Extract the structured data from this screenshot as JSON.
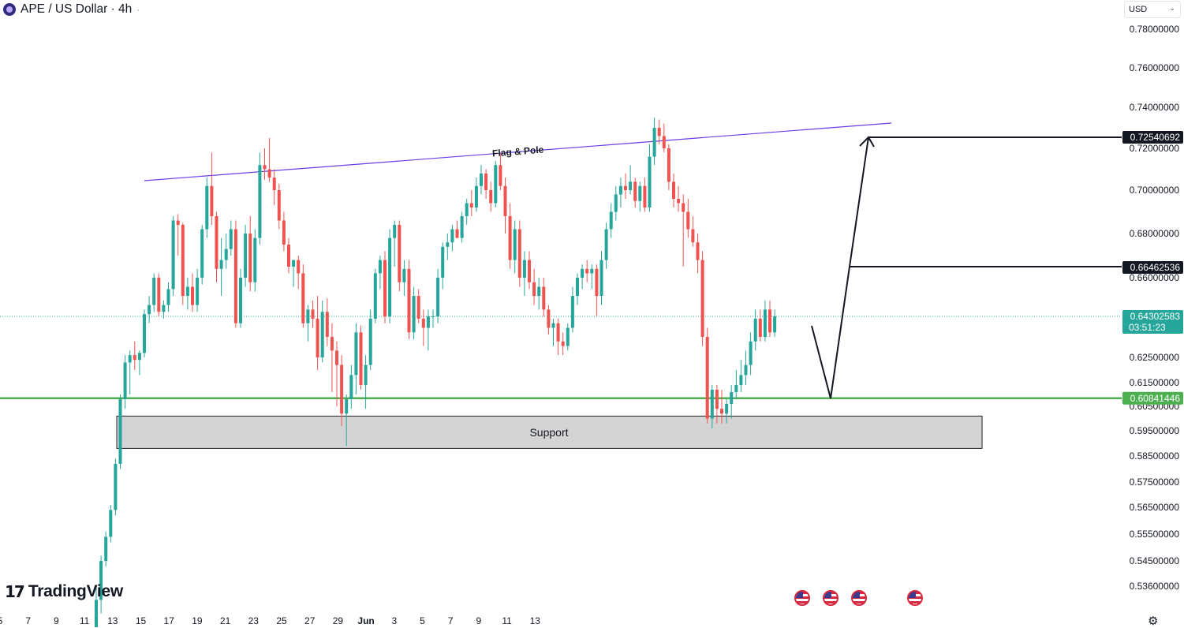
{
  "header": {
    "symbol_title": "APE / US Dollar · 4h",
    "dot": "·"
  },
  "currency": {
    "label": "USD"
  },
  "branding": {
    "logo_mark": "17",
    "logo_text": "TradingView"
  },
  "icons": [
    "symbol-icon",
    "us-flag-icon",
    "settings-gear-icon",
    "chevron-down-icon"
  ],
  "chart_data": {
    "type": "candlestick",
    "symbol": "APE / US Dollar",
    "interval": "4h",
    "y_axis": {
      "ticks": [
        "0.78000000",
        "0.76000000",
        "0.74000000",
        "0.72000000",
        "0.70000000",
        "0.68000000",
        "0.66000000",
        "0.62500000",
        "0.61500000",
        "0.60500000",
        "0.59500000",
        "0.58500000",
        "0.57500000",
        "0.56500000",
        "0.55500000",
        "0.54500000",
        "0.53600000"
      ]
    },
    "x_axis": {
      "ticks": [
        "5",
        "7",
        "9",
        "11",
        "13",
        "15",
        "17",
        "19",
        "21",
        "23",
        "25",
        "27",
        "29",
        "Jun",
        "3",
        "5",
        "7",
        "9",
        "11",
        "13"
      ]
    },
    "price_labels": [
      {
        "value": "0.72540692",
        "style": "black"
      },
      {
        "value": "0.66462536",
        "style": "black"
      },
      {
        "value": "0.64302583",
        "sub": "03:51:23",
        "style": "current"
      },
      {
        "value": "0.60841446",
        "style": "green"
      }
    ],
    "current_price": 0.64302583,
    "countdown": "03:51:23",
    "horizontal_lines": [
      {
        "price": 0.60841446,
        "color": "#4caf50"
      },
      {
        "price": 0.64302583,
        "color": "#26a69a",
        "style": "dotted"
      }
    ],
    "annotations": {
      "trendline_label": "Flag & Pole",
      "trendline_color": "#6a3de8",
      "support_label": "Support"
    },
    "colors": {
      "up": "#26a69a",
      "down": "#ef5350",
      "support_zone": "#d4d4d4"
    },
    "candles_ohlc": [
      [
        0.53,
        0.536,
        0.527,
        0.534
      ],
      [
        0.534,
        0.547,
        0.532,
        0.545
      ],
      [
        0.545,
        0.556,
        0.543,
        0.554
      ],
      [
        0.554,
        0.566,
        0.552,
        0.564
      ],
      [
        0.564,
        0.584,
        0.562,
        0.582
      ],
      [
        0.582,
        0.61,
        0.58,
        0.608
      ],
      [
        0.608,
        0.626,
        0.604,
        0.623
      ],
      [
        0.623,
        0.628,
        0.61,
        0.626
      ],
      [
        0.626,
        0.632,
        0.62,
        0.624
      ],
      [
        0.624,
        0.628,
        0.618,
        0.627
      ],
      [
        0.627,
        0.646,
        0.625,
        0.644
      ],
      [
        0.644,
        0.652,
        0.64,
        0.648
      ],
      [
        0.648,
        0.662,
        0.645,
        0.66
      ],
      [
        0.66,
        0.662,
        0.643,
        0.645
      ],
      [
        0.645,
        0.65,
        0.642,
        0.648
      ],
      [
        0.648,
        0.658,
        0.645,
        0.655
      ],
      [
        0.655,
        0.688,
        0.652,
        0.686
      ],
      [
        0.686,
        0.689,
        0.67,
        0.684
      ],
      [
        0.684,
        0.685,
        0.648,
        0.652
      ],
      [
        0.652,
        0.66,
        0.646,
        0.656
      ],
      [
        0.656,
        0.662,
        0.645,
        0.648
      ],
      [
        0.648,
        0.664,
        0.645,
        0.66
      ],
      [
        0.66,
        0.684,
        0.657,
        0.682
      ],
      [
        0.682,
        0.706,
        0.678,
        0.702
      ],
      [
        0.702,
        0.718,
        0.684,
        0.688
      ],
      [
        0.688,
        0.69,
        0.658,
        0.664
      ],
      [
        0.664,
        0.678,
        0.652,
        0.668
      ],
      [
        0.668,
        0.68,
        0.664,
        0.673
      ],
      [
        0.673,
        0.686,
        0.67,
        0.682
      ],
      [
        0.682,
        0.686,
        0.638,
        0.64
      ],
      [
        0.64,
        0.664,
        0.638,
        0.66
      ],
      [
        0.66,
        0.684,
        0.656,
        0.68
      ],
      [
        0.68,
        0.688,
        0.654,
        0.658
      ],
      [
        0.658,
        0.682,
        0.654,
        0.678
      ],
      [
        0.678,
        0.718,
        0.675,
        0.712
      ],
      [
        0.712,
        0.72,
        0.705,
        0.71
      ],
      [
        0.71,
        0.725,
        0.704,
        0.706
      ],
      [
        0.706,
        0.71,
        0.693,
        0.7
      ],
      [
        0.7,
        0.703,
        0.682,
        0.686
      ],
      [
        0.686,
        0.69,
        0.672,
        0.675
      ],
      [
        0.675,
        0.678,
        0.662,
        0.665
      ],
      [
        0.665,
        0.668,
        0.656,
        0.668
      ],
      [
        0.668,
        0.67,
        0.655,
        0.662
      ],
      [
        0.662,
        0.666,
        0.638,
        0.64
      ],
      [
        0.64,
        0.648,
        0.632,
        0.646
      ],
      [
        0.646,
        0.65,
        0.638,
        0.642
      ],
      [
        0.642,
        0.652,
        0.62,
        0.625
      ],
      [
        0.625,
        0.65,
        0.623,
        0.645
      ],
      [
        0.645,
        0.651,
        0.63,
        0.634
      ],
      [
        0.634,
        0.64,
        0.611,
        0.628
      ],
      [
        0.628,
        0.632,
        0.605,
        0.622
      ],
      [
        0.622,
        0.626,
        0.597,
        0.602
      ],
      [
        0.602,
        0.61,
        0.589,
        0.608
      ],
      [
        0.608,
        0.622,
        0.604,
        0.618
      ],
      [
        0.618,
        0.64,
        0.61,
        0.636
      ],
      [
        0.636,
        0.639,
        0.612,
        0.614
      ],
      [
        0.614,
        0.626,
        0.604,
        0.622
      ],
      [
        0.622,
        0.646,
        0.62,
        0.642
      ],
      [
        0.642,
        0.664,
        0.64,
        0.662
      ],
      [
        0.662,
        0.67,
        0.655,
        0.668
      ],
      [
        0.668,
        0.672,
        0.64,
        0.643
      ],
      [
        0.643,
        0.682,
        0.64,
        0.678
      ],
      [
        0.678,
        0.686,
        0.665,
        0.684
      ],
      [
        0.684,
        0.686,
        0.654,
        0.658
      ],
      [
        0.658,
        0.668,
        0.652,
        0.664
      ],
      [
        0.664,
        0.668,
        0.633,
        0.636
      ],
      [
        0.636,
        0.656,
        0.633,
        0.652
      ],
      [
        0.652,
        0.655,
        0.64,
        0.642
      ],
      [
        0.642,
        0.646,
        0.63,
        0.638
      ],
      [
        0.638,
        0.646,
        0.628,
        0.643
      ],
      [
        0.643,
        0.646,
        0.638,
        0.643
      ],
      [
        0.643,
        0.664,
        0.64,
        0.66
      ],
      [
        0.66,
        0.676,
        0.655,
        0.674
      ],
      [
        0.674,
        0.68,
        0.668,
        0.676
      ],
      [
        0.676,
        0.684,
        0.672,
        0.682
      ],
      [
        0.682,
        0.686,
        0.678,
        0.678
      ],
      [
        0.678,
        0.69,
        0.676,
        0.688
      ],
      [
        0.688,
        0.696,
        0.684,
        0.694
      ],
      [
        0.694,
        0.7,
        0.688,
        0.692
      ],
      [
        0.692,
        0.706,
        0.69,
        0.702
      ],
      [
        0.702,
        0.712,
        0.698,
        0.708
      ],
      [
        0.708,
        0.71,
        0.696,
        0.7
      ],
      [
        0.7,
        0.704,
        0.69,
        0.694
      ],
      [
        0.694,
        0.714,
        0.692,
        0.712
      ],
      [
        0.712,
        0.718,
        0.7,
        0.702
      ],
      [
        0.702,
        0.706,
        0.68,
        0.688
      ],
      [
        0.688,
        0.694,
        0.664,
        0.668
      ],
      [
        0.668,
        0.686,
        0.662,
        0.682
      ],
      [
        0.682,
        0.686,
        0.656,
        0.66
      ],
      [
        0.66,
        0.672,
        0.652,
        0.668
      ],
      [
        0.668,
        0.672,
        0.655,
        0.658
      ],
      [
        0.658,
        0.664,
        0.648,
        0.652
      ],
      [
        0.652,
        0.66,
        0.646,
        0.656
      ],
      [
        0.656,
        0.66,
        0.643,
        0.646
      ],
      [
        0.646,
        0.648,
        0.635,
        0.638
      ],
      [
        0.638,
        0.642,
        0.63,
        0.64
      ],
      [
        0.64,
        0.642,
        0.626,
        0.632
      ],
      [
        0.632,
        0.636,
        0.626,
        0.63
      ],
      [
        0.63,
        0.64,
        0.628,
        0.638
      ],
      [
        0.638,
        0.656,
        0.636,
        0.652
      ],
      [
        0.652,
        0.662,
        0.648,
        0.66
      ],
      [
        0.66,
        0.666,
        0.655,
        0.664
      ],
      [
        0.664,
        0.668,
        0.658,
        0.662
      ],
      [
        0.662,
        0.666,
        0.655,
        0.664
      ],
      [
        0.664,
        0.666,
        0.643,
        0.652
      ],
      [
        0.652,
        0.672,
        0.648,
        0.668
      ],
      [
        0.668,
        0.685,
        0.664,
        0.682
      ],
      [
        0.682,
        0.694,
        0.678,
        0.69
      ],
      [
        0.69,
        0.702,
        0.686,
        0.698
      ],
      [
        0.698,
        0.706,
        0.692,
        0.702
      ],
      [
        0.702,
        0.708,
        0.696,
        0.7
      ],
      [
        0.7,
        0.712,
        0.698,
        0.704
      ],
      [
        0.704,
        0.706,
        0.692,
        0.695
      ],
      [
        0.695,
        0.704,
        0.69,
        0.702
      ],
      [
        0.702,
        0.706,
        0.69,
        0.692
      ],
      [
        0.692,
        0.722,
        0.69,
        0.716
      ],
      [
        0.716,
        0.735,
        0.712,
        0.73
      ],
      [
        0.73,
        0.734,
        0.722,
        0.726
      ],
      [
        0.726,
        0.732,
        0.718,
        0.72
      ],
      [
        0.72,
        0.722,
        0.7,
        0.704
      ],
      [
        0.704,
        0.708,
        0.692,
        0.696
      ],
      [
        0.696,
        0.702,
        0.69,
        0.694
      ],
      [
        0.694,
        0.698,
        0.665,
        0.69
      ],
      [
        0.69,
        0.696,
        0.678,
        0.682
      ],
      [
        0.682,
        0.688,
        0.674,
        0.676
      ],
      [
        0.676,
        0.68,
        0.662,
        0.668
      ],
      [
        0.668,
        0.672,
        0.63,
        0.634
      ],
      [
        0.634,
        0.638,
        0.598,
        0.6
      ],
      [
        0.6,
        0.614,
        0.596,
        0.612
      ],
      [
        0.612,
        0.614,
        0.598,
        0.604
      ],
      [
        0.604,
        0.612,
        0.598,
        0.602
      ],
      [
        0.602,
        0.608,
        0.598,
        0.606
      ],
      [
        0.606,
        0.614,
        0.6,
        0.611
      ],
      [
        0.611,
        0.62,
        0.608,
        0.614
      ],
      [
        0.614,
        0.624,
        0.611,
        0.618
      ],
      [
        0.618,
        0.628,
        0.614,
        0.622
      ],
      [
        0.622,
        0.636,
        0.618,
        0.632
      ],
      [
        0.632,
        0.646,
        0.628,
        0.642
      ],
      [
        0.642,
        0.646,
        0.632,
        0.634
      ],
      [
        0.634,
        0.65,
        0.632,
        0.646
      ],
      [
        0.646,
        0.65,
        0.634,
        0.636
      ],
      [
        0.636,
        0.646,
        0.634,
        0.643
      ]
    ]
  }
}
